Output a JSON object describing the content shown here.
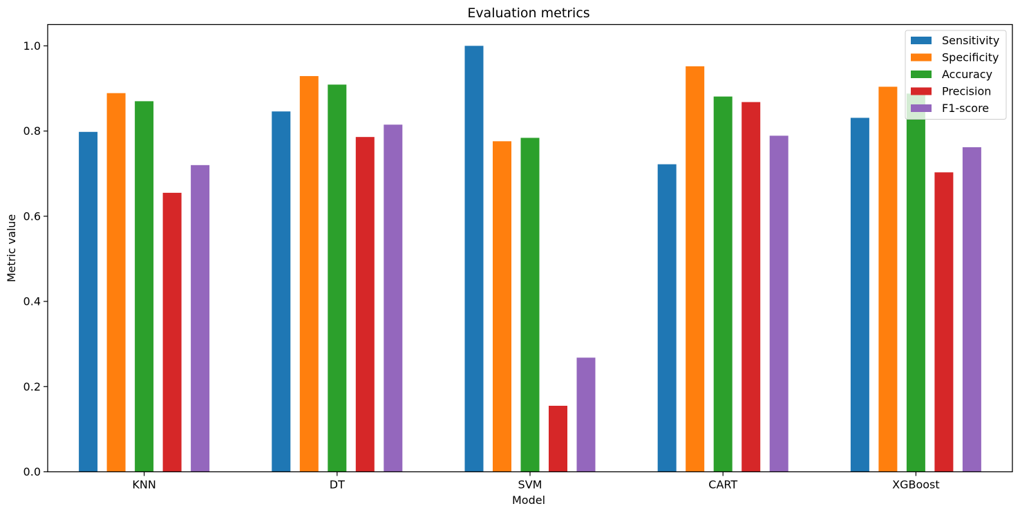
{
  "chart_data": {
    "type": "bar",
    "title": "Evaluation metrics",
    "xlabel": "Model",
    "ylabel": "Metric value",
    "categories": [
      "KNN",
      "DT",
      "SVM",
      "CART",
      "XGBoost"
    ],
    "ylim": [
      0,
      1.05
    ],
    "yticks": [
      0.0,
      0.2,
      0.4,
      0.6,
      0.8,
      1.0
    ],
    "ytick_labels": [
      "0.0",
      "0.2",
      "0.4",
      "0.6",
      "0.8",
      "1.0"
    ],
    "grid": false,
    "legend_position": "top-right",
    "series": [
      {
        "name": "Sensitivity",
        "color": "#1f77b4",
        "values": [
          0.798,
          0.846,
          1.0,
          0.722,
          0.831
        ]
      },
      {
        "name": "Specificity",
        "color": "#ff7f0e",
        "values": [
          0.889,
          0.929,
          0.776,
          0.952,
          0.904
        ]
      },
      {
        "name": "Accuracy",
        "color": "#2ca02c",
        "values": [
          0.87,
          0.909,
          0.784,
          0.881,
          0.888
        ]
      },
      {
        "name": "Precision",
        "color": "#d62728",
        "values": [
          0.655,
          0.786,
          0.155,
          0.868,
          0.703
        ]
      },
      {
        "name": "F1-score",
        "color": "#9467bd",
        "values": [
          0.72,
          0.815,
          0.268,
          0.789,
          0.762
        ]
      }
    ]
  }
}
